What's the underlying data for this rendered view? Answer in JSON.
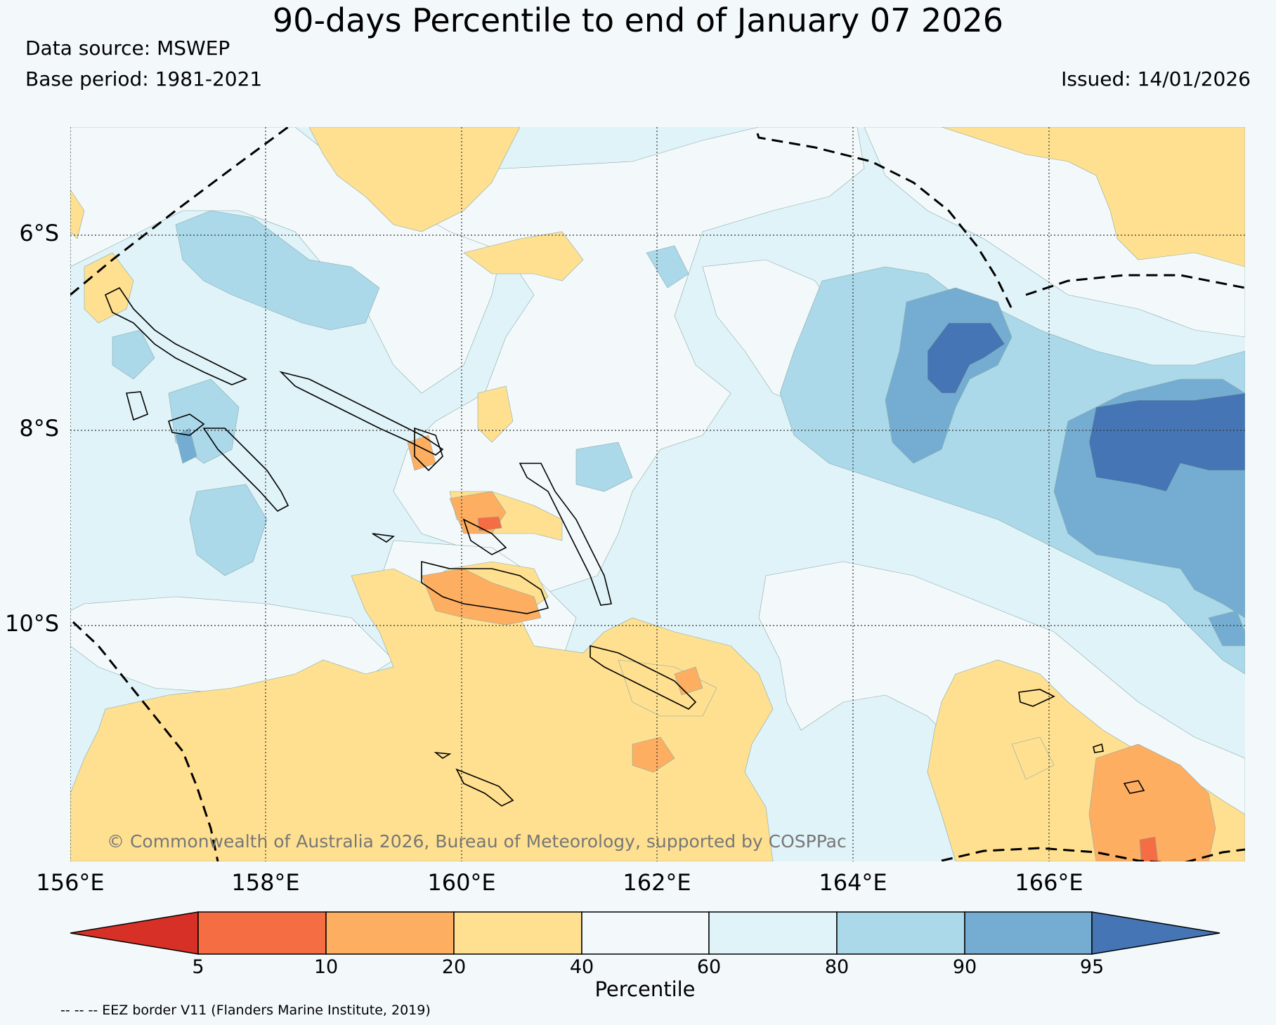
{
  "header": {
    "title": "90-days Percentile to end of January 07 2026",
    "data_source": "Data source: MSWEP",
    "base_period": "Base period: 1981-2021",
    "issued": "Issued: 14/01/2026"
  },
  "map": {
    "lat_labels": [
      "6°S",
      "8°S",
      "10°S"
    ],
    "lon_labels": [
      "156°E",
      "158°E",
      "160°E",
      "162°E",
      "164°E",
      "166°E"
    ],
    "copyright": "© Commonwealth of Australia 2026, Bureau of Meteorology, supported by COSPPac",
    "colors": {
      "lt5": "#d73027",
      "p5_10": "#f46d43",
      "p10_20": "#fdae61",
      "p20_40": "#fee090",
      "p40_60": "#f3f9fb",
      "p60_80": "#e0f3f8",
      "p80_90": "#abd9e9",
      "p90_95": "#74add1",
      "gt95": "#4575b4"
    }
  },
  "colorbar": {
    "title": "Percentile",
    "ticks": [
      "5",
      "10",
      "20",
      "40",
      "60",
      "80",
      "90",
      "95"
    ]
  },
  "footer": {
    "eez_note": "-- -- -- EEZ border V11 (Flanders Marine Institute, 2019)"
  }
}
